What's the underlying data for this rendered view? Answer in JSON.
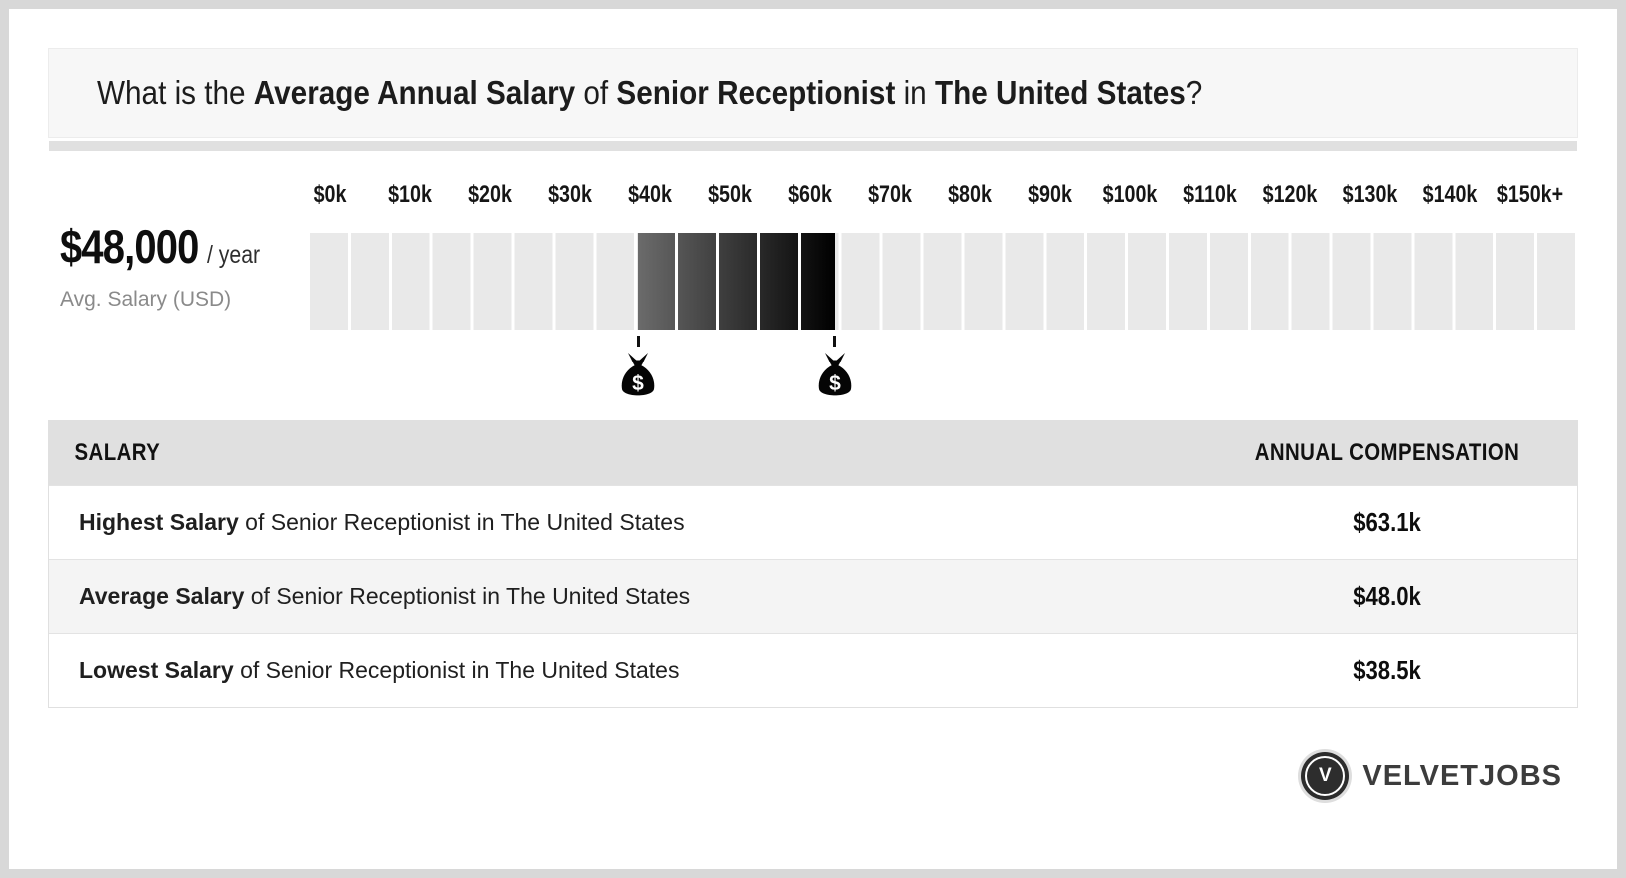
{
  "header": {
    "title_segments": [
      {
        "text": "What is the ",
        "bold": false
      },
      {
        "text": "Average Annual Salary",
        "bold": true
      },
      {
        "text": " of ",
        "bold": false
      },
      {
        "text": "Senior Receptionist",
        "bold": true
      },
      {
        "text": " in ",
        "bold": false
      },
      {
        "text": "The United States",
        "bold": true
      },
      {
        "text": "?",
        "bold": false
      }
    ]
  },
  "stat": {
    "amount": "$48,000",
    "suffix": "/ year",
    "caption": "Avg. Salary (USD)"
  },
  "chart_data": {
    "type": "range-strip",
    "title": "Salary range of Senior Receptionist in The United States",
    "unit": "USD thousands per year",
    "axis": {
      "domain_k": [
        -2.5,
        156
      ],
      "cell_width_k": 5,
      "cell_count": 31,
      "ticks": [
        {
          "label": "$0k",
          "value_k": 0
        },
        {
          "label": "$10k",
          "value_k": 10
        },
        {
          "label": "$20k",
          "value_k": 20
        },
        {
          "label": "$30k",
          "value_k": 30
        },
        {
          "label": "$40k",
          "value_k": 40
        },
        {
          "label": "$50k",
          "value_k": 50
        },
        {
          "label": "$60k",
          "value_k": 60
        },
        {
          "label": "$70k",
          "value_k": 70
        },
        {
          "label": "$80k",
          "value_k": 80
        },
        {
          "label": "$90k",
          "value_k": 90
        },
        {
          "label": "$100k",
          "value_k": 100
        },
        {
          "label": "$110k",
          "value_k": 110
        },
        {
          "label": "$120k",
          "value_k": 120
        },
        {
          "label": "$130k",
          "value_k": 130
        },
        {
          "label": "$140k",
          "value_k": 140
        },
        {
          "label": "$150k+",
          "value_k": 150
        }
      ]
    },
    "highlight": {
      "low_k": 38.5,
      "high_k": 63.1,
      "gradient": [
        "#6b6b6b",
        "#000000"
      ]
    },
    "values": {
      "lowest_k": 38.5,
      "average_k": 48.0,
      "highest_k": 63.1
    },
    "colors": {
      "cell_gray": "#e9e9e9",
      "gap_white": "#ffffff"
    }
  },
  "table": {
    "col_headers": [
      "SALARY",
      "ANNUAL COMPENSATION"
    ],
    "rows": [
      {
        "label_bold": "Highest Salary",
        "label_rest": " of Senior Receptionist in The United States",
        "value": "$63.1k"
      },
      {
        "label_bold": "Average Salary",
        "label_rest": " of Senior Receptionist in The United States",
        "value": "$48.0k"
      },
      {
        "label_bold": "Lowest Salary",
        "label_rest": " of Senior Receptionist in The United States",
        "value": "$38.5k"
      }
    ]
  },
  "footer": {
    "brand": "VELVETJOBS",
    "logo_letter": "V"
  }
}
